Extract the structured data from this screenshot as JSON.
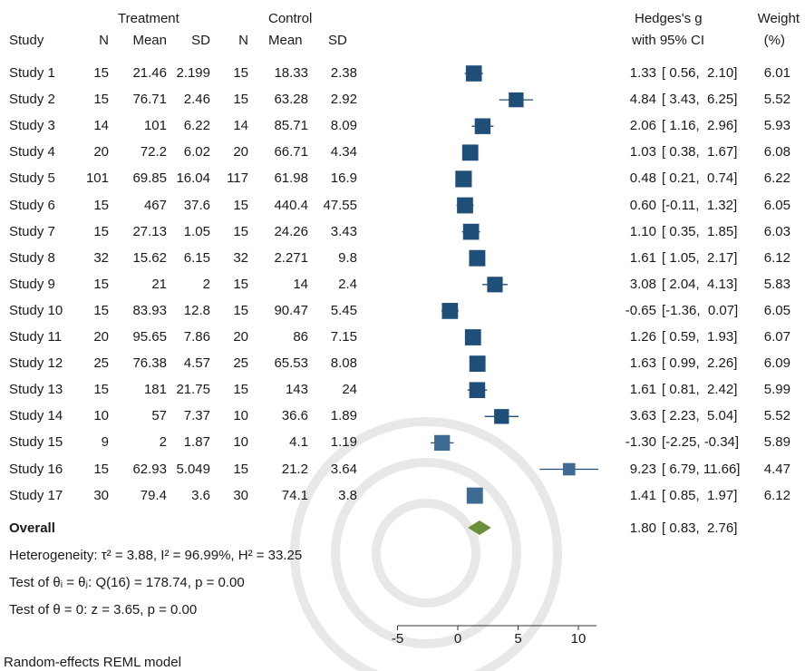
{
  "headers": {
    "study": "Study",
    "treatment_group": "Treatment",
    "control_group": "Control",
    "n": "N",
    "mean": "Mean",
    "sd": "SD",
    "effect_line1": "Hedges's g",
    "effect_line2": "with 95% CI",
    "weight_line1": "Weight",
    "weight_line2": "(%)"
  },
  "rows": [
    {
      "study": "Study 1",
      "tn": "15",
      "tmean": "21.46",
      "tsd": "2.199",
      "cn": "15",
      "cmean": "18.33",
      "csd": "2.38",
      "g_text": "1.33",
      "ci_text": "[ 0.56,  2.10]",
      "weight": "6.01"
    },
    {
      "study": "Study 2",
      "tn": "15",
      "tmean": "76.71",
      "tsd": "2.46",
      "cn": "15",
      "cmean": "63.28",
      "csd": "2.92",
      "g_text": "4.84",
      "ci_text": "[ 3.43,  6.25]",
      "weight": "5.52"
    },
    {
      "study": "Study 3",
      "tn": "14",
      "tmean": "101",
      "tsd": "6.22",
      "cn": "14",
      "cmean": "85.71",
      "csd": "8.09",
      "g_text": "2.06",
      "ci_text": "[ 1.16,  2.96]",
      "weight": "5.93"
    },
    {
      "study": "Study 4",
      "tn": "20",
      "tmean": "72.2",
      "tsd": "6.02",
      "cn": "20",
      "cmean": "66.71",
      "csd": "4.34",
      "g_text": "1.03",
      "ci_text": "[ 0.38,  1.67]",
      "weight": "6.08"
    },
    {
      "study": "Study 5",
      "tn": "101",
      "tmean": "69.85",
      "tsd": "16.04",
      "cn": "117",
      "cmean": "61.98",
      "csd": "16.9",
      "g_text": "0.48",
      "ci_text": "[ 0.21,  0.74]",
      "weight": "6.22"
    },
    {
      "study": "Study 6",
      "tn": "15",
      "tmean": "467",
      "tsd": "37.6",
      "cn": "15",
      "cmean": "440.4",
      "csd": "47.55",
      "g_text": "0.60",
      "ci_text": "[-0.11,  1.32]",
      "weight": "6.05"
    },
    {
      "study": "Study 7",
      "tn": "15",
      "tmean": "27.13",
      "tsd": "1.05",
      "cn": "15",
      "cmean": "24.26",
      "csd": "3.43",
      "g_text": "1.10",
      "ci_text": "[ 0.35,  1.85]",
      "weight": "6.03"
    },
    {
      "study": "Study 8",
      "tn": "32",
      "tmean": "15.62",
      "tsd": "6.15",
      "cn": "32",
      "cmean": "2.271",
      "csd": "9.8",
      "g_text": "1.61",
      "ci_text": "[ 1.05,  2.17]",
      "weight": "6.12"
    },
    {
      "study": "Study 9",
      "tn": "15",
      "tmean": "21",
      "tsd": "2",
      "cn": "15",
      "cmean": "14",
      "csd": "2.4",
      "g_text": "3.08",
      "ci_text": "[ 2.04,  4.13]",
      "weight": "5.83"
    },
    {
      "study": "Study 10",
      "tn": "15",
      "tmean": "83.93",
      "tsd": "12.8",
      "cn": "15",
      "cmean": "90.47",
      "csd": "5.45",
      "g_text": "-0.65",
      "ci_text": "[-1.36,  0.07]",
      "weight": "6.05"
    },
    {
      "study": "Study 11",
      "tn": "20",
      "tmean": "95.65",
      "tsd": "7.86",
      "cn": "20",
      "cmean": "86",
      "csd": "7.15",
      "g_text": "1.26",
      "ci_text": "[ 0.59,  1.93]",
      "weight": "6.07"
    },
    {
      "study": "Study 12",
      "tn": "25",
      "tmean": "76.38",
      "tsd": "4.57",
      "cn": "25",
      "cmean": "65.53",
      "csd": "8.08",
      "g_text": "1.63",
      "ci_text": "[ 0.99,  2.26]",
      "weight": "6.09"
    },
    {
      "study": "Study 13",
      "tn": "15",
      "tmean": "181",
      "tsd": "21.75",
      "cn": "15",
      "cmean": "143",
      "csd": "24",
      "g_text": "1.61",
      "ci_text": "[ 0.81,  2.42]",
      "weight": "5.99"
    },
    {
      "study": "Study 14",
      "tn": "10",
      "tmean": "57",
      "tsd": "7.37",
      "cn": "10",
      "cmean": "36.6",
      "csd": "1.89",
      "g_text": "3.63",
      "ci_text": "[ 2.23,  5.04]",
      "weight": "5.52"
    },
    {
      "study": "Study 15",
      "tn": "9",
      "tmean": "2",
      "tsd": "1.87",
      "cn": "10",
      "cmean": "4.1",
      "csd": "1.19",
      "g_text": "-1.30",
      "ci_text": "[-2.25, -0.34]",
      "weight": "5.89"
    },
    {
      "study": "Study 16",
      "tn": "15",
      "tmean": "62.93",
      "tsd": "5.049",
      "cn": "15",
      "cmean": "21.2",
      "csd": "3.64",
      "g_text": "9.23",
      "ci_text": "[ 6.79, 11.66]",
      "weight": "4.47"
    },
    {
      "study": "Study 17",
      "tn": "30",
      "tmean": "79.4",
      "tsd": "3.6",
      "cn": "30",
      "cmean": "74.1",
      "csd": "3.8",
      "g_text": "1.41",
      "ci_text": "[ 0.85,  1.97]",
      "weight": "6.12"
    }
  ],
  "overall": {
    "label": "Overall",
    "g_text": "1.80",
    "ci_text": "[ 0.83,  2.76]"
  },
  "notes": {
    "heterogeneity": "Heterogeneity: τ² = 3.88, I² = 96.99%, H² = 33.25",
    "test_theta_i": "Test of θᵢ = θⱼ: Q(16) = 178.74, p = 0.00",
    "test_theta_zero": "Test of θ = 0: z = 3.65, p = 0.00",
    "model": "Random-effects REML model"
  },
  "colors": {
    "study_marker": "#1f4e79",
    "faded_marker": "#3d6b93",
    "overall_diamond": "#6b8e3a",
    "text": "#1a1a1a",
    "watermark": "#e6e6e6"
  },
  "chart_data": {
    "type": "forest",
    "x_ticks": [
      "-5",
      "0",
      "5",
      "10"
    ],
    "xlim": [
      -5,
      11.5
    ],
    "points": [
      {
        "study": "Study 1",
        "g": 1.33,
        "lo": 0.56,
        "hi": 2.1,
        "weight": 6.01
      },
      {
        "study": "Study 2",
        "g": 4.84,
        "lo": 3.43,
        "hi": 6.25,
        "weight": 5.52
      },
      {
        "study": "Study 3",
        "g": 2.06,
        "lo": 1.16,
        "hi": 2.96,
        "weight": 5.93
      },
      {
        "study": "Study 4",
        "g": 1.03,
        "lo": 0.38,
        "hi": 1.67,
        "weight": 6.08
      },
      {
        "study": "Study 5",
        "g": 0.48,
        "lo": 0.21,
        "hi": 0.74,
        "weight": 6.22
      },
      {
        "study": "Study 6",
        "g": 0.6,
        "lo": -0.11,
        "hi": 1.32,
        "weight": 6.05
      },
      {
        "study": "Study 7",
        "g": 1.1,
        "lo": 0.35,
        "hi": 1.85,
        "weight": 6.03
      },
      {
        "study": "Study 8",
        "g": 1.61,
        "lo": 1.05,
        "hi": 2.17,
        "weight": 6.12
      },
      {
        "study": "Study 9",
        "g": 3.08,
        "lo": 2.04,
        "hi": 4.13,
        "weight": 5.83
      },
      {
        "study": "Study 10",
        "g": -0.65,
        "lo": -1.36,
        "hi": 0.07,
        "weight": 6.05
      },
      {
        "study": "Study 11",
        "g": 1.26,
        "lo": 0.59,
        "hi": 1.93,
        "weight": 6.07
      },
      {
        "study": "Study 12",
        "g": 1.63,
        "lo": 0.99,
        "hi": 2.26,
        "weight": 6.09
      },
      {
        "study": "Study 13",
        "g": 1.61,
        "lo": 0.81,
        "hi": 2.42,
        "weight": 5.99
      },
      {
        "study": "Study 14",
        "g": 3.63,
        "lo": 2.23,
        "hi": 5.04,
        "weight": 5.52
      },
      {
        "study": "Study 15",
        "g": -1.3,
        "lo": -2.25,
        "hi": -0.34,
        "weight": 5.89
      },
      {
        "study": "Study 16",
        "g": 9.23,
        "lo": 6.79,
        "hi": 11.66,
        "weight": 4.47
      },
      {
        "study": "Study 17",
        "g": 1.41,
        "lo": 0.85,
        "hi": 1.97,
        "weight": 6.12
      }
    ],
    "overall": {
      "g": 1.8,
      "lo": 0.83,
      "hi": 2.76
    }
  }
}
